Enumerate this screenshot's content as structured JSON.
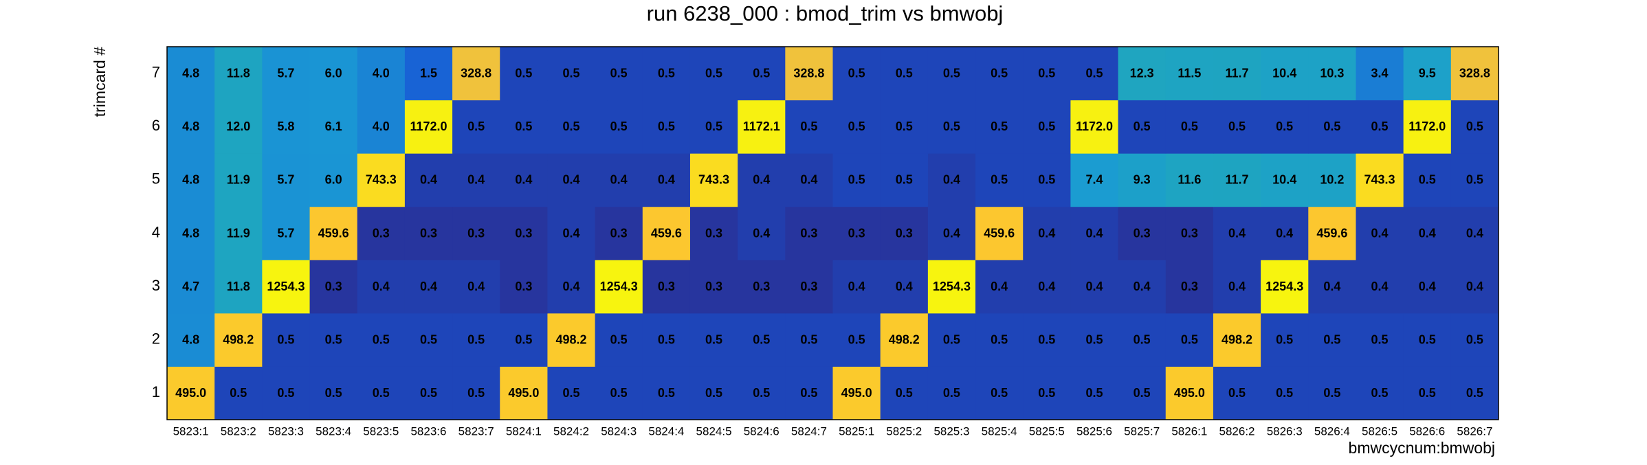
{
  "chart_data": {
    "type": "heatmap",
    "title": "run 6238_000 : bmod_trim vs bmwobj",
    "x_label": "bmwcycnum:bmwobj",
    "y_label": "trimcard #",
    "x_categories": [
      "5823:1",
      "5823:2",
      "5823:3",
      "5823:4",
      "5823:5",
      "5823:6",
      "5823:7",
      "5824:1",
      "5824:2",
      "5824:3",
      "5824:4",
      "5824:5",
      "5824:6",
      "5824:7",
      "5825:1",
      "5825:2",
      "5825:3",
      "5825:4",
      "5825:5",
      "5825:6",
      "5825:7",
      "5826:1",
      "5826:2",
      "5826:3",
      "5826:4",
      "5826:5",
      "5826:6",
      "5826:7"
    ],
    "y_categories": [
      1,
      2,
      3,
      4,
      5,
      6,
      7
    ],
    "values": [
      [
        495.0,
        0.5,
        0.5,
        0.5,
        0.5,
        0.5,
        0.5,
        495.0,
        0.5,
        0.5,
        0.5,
        0.5,
        0.5,
        0.5,
        495.0,
        0.5,
        0.5,
        0.5,
        0.5,
        0.5,
        0.5,
        495.0,
        0.5,
        0.5,
        0.5,
        0.5,
        0.5,
        0.5
      ],
      [
        4.8,
        498.2,
        0.5,
        0.5,
        0.5,
        0.5,
        0.5,
        0.5,
        498.2,
        0.5,
        0.5,
        0.5,
        0.5,
        0.5,
        0.5,
        498.2,
        0.5,
        0.5,
        0.5,
        0.5,
        0.5,
        0.5,
        498.2,
        0.5,
        0.5,
        0.5,
        0.5,
        0.5
      ],
      [
        4.7,
        11.8,
        1254.3,
        0.3,
        0.4,
        0.4,
        0.4,
        0.3,
        0.4,
        1254.3,
        0.3,
        0.3,
        0.3,
        0.3,
        0.4,
        0.4,
        1254.3,
        0.4,
        0.4,
        0.4,
        0.4,
        0.3,
        0.4,
        1254.3,
        0.4,
        0.4,
        0.4,
        0.4
      ],
      [
        4.8,
        11.9,
        5.7,
        459.6,
        0.3,
        0.3,
        0.3,
        0.3,
        0.4,
        0.3,
        459.6,
        0.3,
        0.4,
        0.3,
        0.3,
        0.3,
        0.4,
        459.6,
        0.4,
        0.4,
        0.3,
        0.3,
        0.4,
        0.4,
        459.6,
        0.4,
        0.4,
        0.4
      ],
      [
        4.8,
        11.9,
        5.7,
        6.0,
        743.3,
        0.4,
        0.4,
        0.4,
        0.4,
        0.4,
        0.4,
        743.3,
        0.4,
        0.4,
        0.5,
        0.5,
        0.4,
        0.5,
        0.5,
        7.4,
        9.3,
        11.6,
        11.7,
        10.4,
        10.2,
        743.3,
        0.5,
        0.5
      ],
      [
        4.8,
        12.0,
        5.8,
        6.1,
        4.0,
        1172.0,
        0.5,
        0.5,
        0.5,
        0.5,
        0.5,
        0.5,
        1172.1,
        0.5,
        0.5,
        0.5,
        0.5,
        0.5,
        0.5,
        1172.0,
        0.5,
        0.5,
        0.5,
        0.5,
        0.5,
        0.5,
        1172.0,
        0.5
      ],
      [
        4.8,
        11.8,
        5.7,
        6.0,
        4.0,
        1.5,
        328.8,
        0.5,
        0.5,
        0.5,
        0.5,
        0.5,
        0.5,
        328.8,
        0.5,
        0.5,
        0.5,
        0.5,
        0.5,
        0.5,
        12.3,
        11.5,
        11.7,
        10.4,
        10.3,
        3.4,
        9.5,
        328.8
      ]
    ],
    "value_labels": [
      [
        "495.0",
        "0.5",
        "0.5",
        "0.5",
        "0.5",
        "0.5",
        "0.5",
        "495.0",
        "0.5",
        "0.5",
        "0.5",
        "0.5",
        "0.5",
        "0.5",
        "495.0",
        "0.5",
        "0.5",
        "0.5",
        "0.5",
        "0.5",
        "0.5",
        "495.0",
        "0.5",
        "0.5",
        "0.5",
        "0.5",
        "0.5",
        "0.5"
      ],
      [
        "4.8",
        "498.2",
        "0.5",
        "0.5",
        "0.5",
        "0.5",
        "0.5",
        "0.5",
        "498.2",
        "0.5",
        "0.5",
        "0.5",
        "0.5",
        "0.5",
        "0.5",
        "498.2",
        "0.5",
        "0.5",
        "0.5",
        "0.5",
        "0.5",
        "0.5",
        "498.2",
        "0.5",
        "0.5",
        "0.5",
        "0.5",
        "0.5"
      ],
      [
        "4.7",
        "11.8",
        "1254.3",
        "0.3",
        "0.4",
        "0.4",
        "0.4",
        "0.3",
        "0.4",
        "1254.3",
        "0.3",
        "0.3",
        "0.3",
        "0.3",
        "0.4",
        "0.4",
        "1254.3",
        "0.4",
        "0.4",
        "0.4",
        "0.4",
        "0.3",
        "0.4",
        "1254.3",
        "0.4",
        "0.4",
        "0.4",
        "0.4"
      ],
      [
        "4.8",
        "11.9",
        "5.7",
        "459.6",
        "0.3",
        "0.3",
        "0.3",
        "0.3",
        "0.4",
        "0.3",
        "459.6",
        "0.3",
        "0.4",
        "0.3",
        "0.3",
        "0.3",
        "0.4",
        "459.6",
        "0.4",
        "0.4",
        "0.3",
        "0.3",
        "0.4",
        "0.4",
        "459.6",
        "0.4",
        "0.4",
        "0.4"
      ],
      [
        "4.8",
        "11.9",
        "5.7",
        "6.0",
        "743.3",
        "0.4",
        "0.4",
        "0.4",
        "0.4",
        "0.4",
        "0.4",
        "743.3",
        "0.4",
        "0.4",
        "0.5",
        "0.5",
        "0.4",
        "0.5",
        "0.5",
        "7.4",
        "9.3",
        "11.6",
        "11.7",
        "10.4",
        "10.2",
        "743.3",
        "0.5",
        "0.5"
      ],
      [
        "4.8",
        "12.0",
        "5.8",
        "6.1",
        "4.0",
        "1172.0",
        "0.5",
        "0.5",
        "0.5",
        "0.5",
        "0.5",
        "0.5",
        "1172.1",
        "0.5",
        "0.5",
        "0.5",
        "0.5",
        "0.5",
        "0.5",
        "1172.0",
        "0.5",
        "0.5",
        "0.5",
        "0.5",
        "0.5",
        "0.5",
        "1172.0",
        "0.5"
      ],
      [
        "4.8",
        "11.8",
        "5.7",
        "6.0",
        "4.0",
        "1.5",
        "328.8",
        "0.5",
        "0.5",
        "0.5",
        "0.5",
        "0.5",
        "0.5",
        "328.8",
        "0.5",
        "0.5",
        "0.5",
        "0.5",
        "0.5",
        "0.5",
        "12.3",
        "11.5",
        "11.7",
        "10.4",
        "10.3",
        "3.4",
        "9.5",
        "328.8"
      ]
    ],
    "z_log": true,
    "palette": [
      "#27359e",
      "#1555d6",
      "#1a6fd4",
      "#1a9bd4",
      "#22adb0",
      "#87bf77",
      "#d1bb59",
      "#fcc530",
      "#f7f40f"
    ]
  }
}
